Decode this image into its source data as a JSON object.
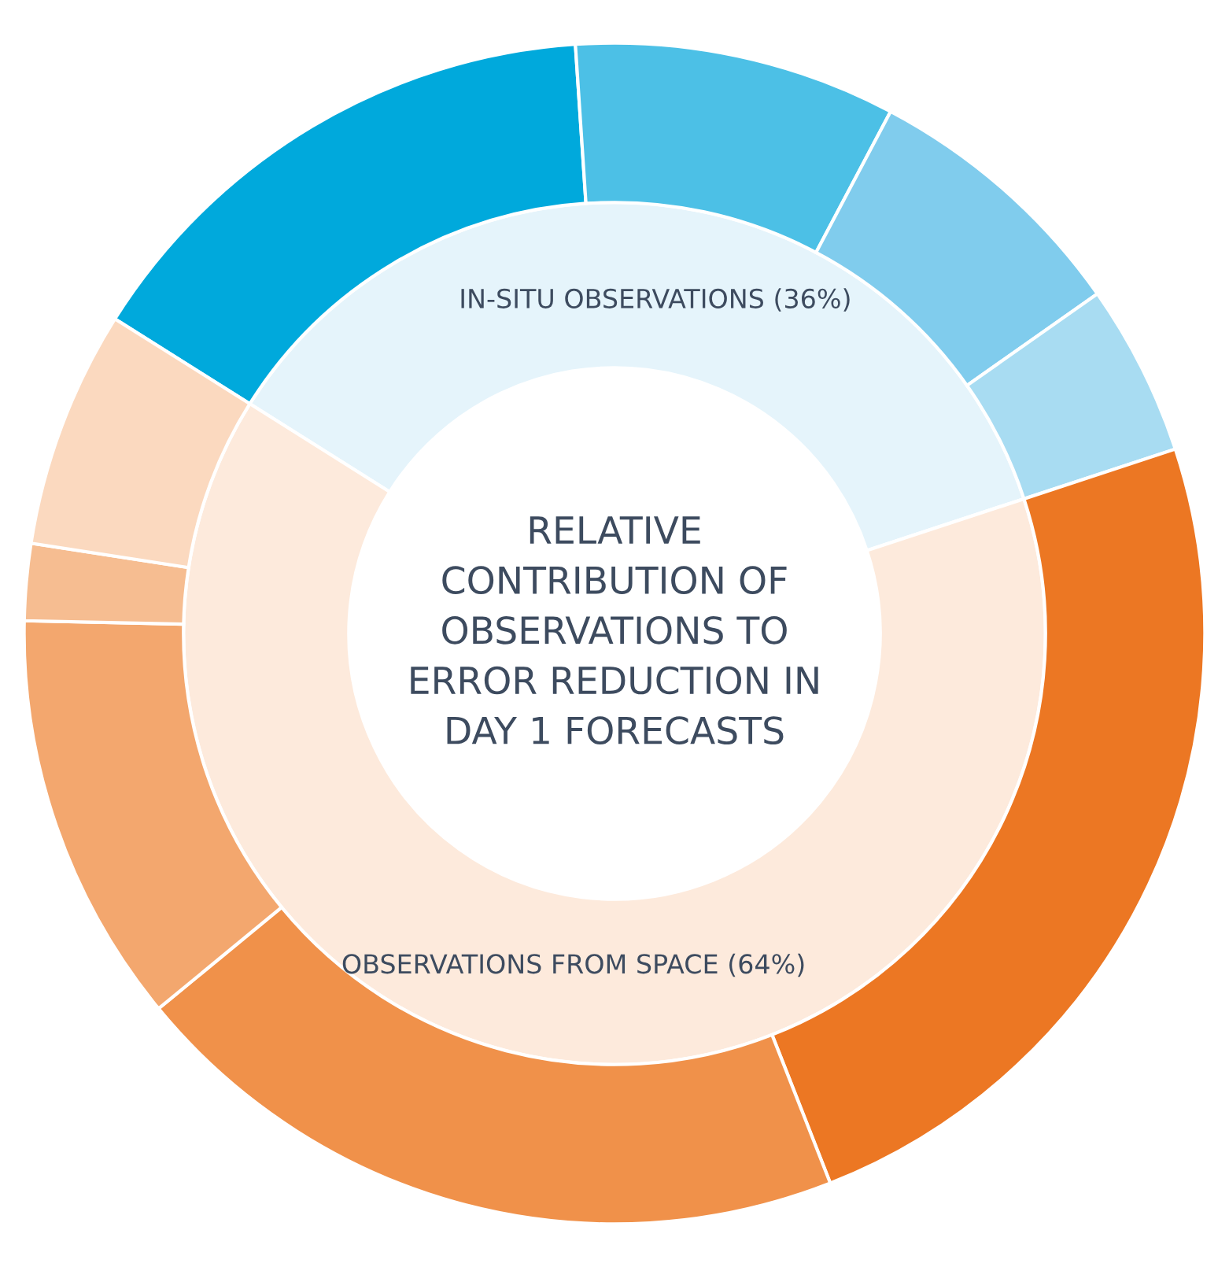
{
  "chart_data": {
    "type": "donut",
    "title": "RELATIVE\nCONTRIBUTION OF\nOBSERVATIONS TO\nERROR REDUCTION IN\nDAY 1 FORECASTS",
    "annotations": [
      "IN-SITU OBSERVATIONS (36%)",
      "OBSERVATIONS FROM SPACE (64%)"
    ],
    "series": [
      {
        "values": [
          36,
          64
        ],
        "colors": [
          "#e5f4fb",
          "#fdeadc"
        ]
      },
      {
        "values": [
          15.0,
          8.8,
          7.5,
          4.7,
          24.1,
          20.0,
          11.3,
          2.1,
          6.5
        ],
        "colors": [
          "#00a9dc",
          "#4cc0e6",
          "#80cced",
          "#a8dcf2",
          "#ec7723",
          "#f0914a",
          "#f3a76e",
          "#f6bd91",
          "#fbd9bf"
        ]
      }
    ]
  }
}
